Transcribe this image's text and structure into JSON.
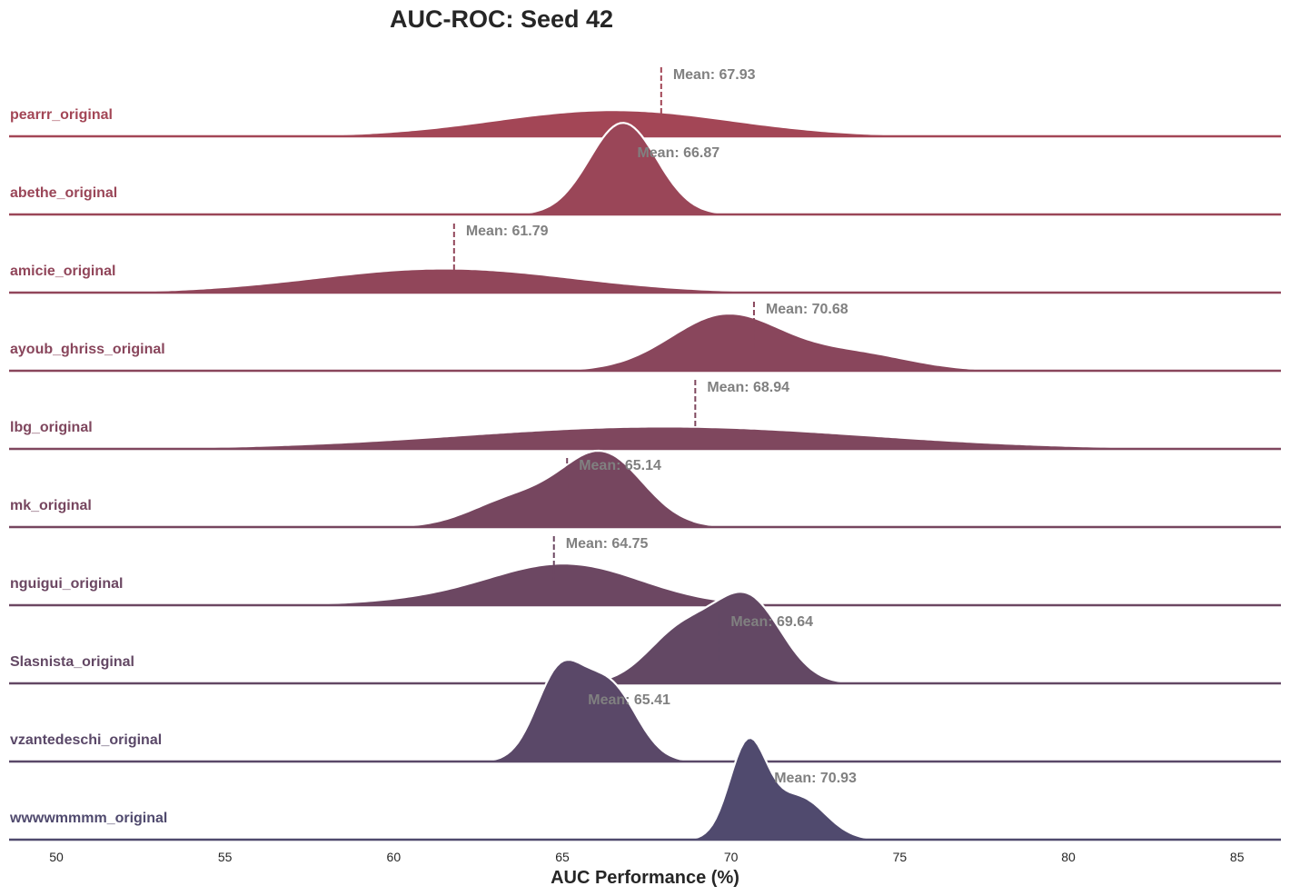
{
  "chart_data": {
    "type": "area",
    "subtype": "ridgeline-density",
    "title": "AUC-ROC: Seed 42",
    "xlabel": "AUC Performance (%)",
    "ylabel": "",
    "xlim": [
      48.6,
      86.3
    ],
    "xticks": [
      50,
      55,
      60,
      65,
      70,
      75,
      80,
      85
    ],
    "mean_label_prefix": "Mean: ",
    "grid": false,
    "series": [
      {
        "name": "pearrr_original",
        "mean": 67.93,
        "mean_label": "67.93",
        "color": "#a34656",
        "show_mean_line": true,
        "components": [
          [
            66.5,
            3.5,
            1.0
          ]
        ]
      },
      {
        "name": "abethe_original",
        "mean": 66.87,
        "mean_label": "66.87",
        "color": "#9a4658",
        "show_mean_line": false,
        "components": [
          [
            66.8,
            1.0,
            1.0
          ]
        ]
      },
      {
        "name": "amicie_original",
        "mean": 61.79,
        "mean_label": "61.79",
        "color": "#91465a",
        "show_mean_line": true,
        "components": [
          [
            61.5,
            3.8,
            1.0
          ]
        ]
      },
      {
        "name": "ayoub_ghriss_original",
        "mean": 70.68,
        "mean_label": "70.68",
        "color": "#89465c",
        "show_mean_line": true,
        "components": [
          [
            69.8,
            1.6,
            0.62
          ],
          [
            73.8,
            1.6,
            0.15
          ],
          [
            71.5,
            2.5,
            0.12
          ]
        ]
      },
      {
        "name": "lbg_original",
        "mean": 68.94,
        "mean_label": "68.94",
        "color": "#7f475e",
        "show_mean_line": true,
        "components": [
          [
            68.0,
            6.0,
            1.0
          ]
        ]
      },
      {
        "name": "mk_original",
        "mean": 65.14,
        "mean_label": "65.14",
        "color": "#76465f",
        "show_mean_line": true,
        "components": [
          [
            66.2,
            1.2,
            1.0
          ],
          [
            63.6,
            1.3,
            0.38
          ]
        ]
      },
      {
        "name": "nguigui_original",
        "mean": 64.75,
        "mean_label": "64.75",
        "color": "#6c4762",
        "show_mean_line": true,
        "components": [
          [
            65.2,
            2.2,
            1.0
          ],
          [
            62.0,
            2.5,
            0.15
          ]
        ]
      },
      {
        "name": "Slasnista_original",
        "mean": 69.64,
        "mean_label": "69.64",
        "color": "#634864",
        "show_mean_line": true,
        "components": [
          [
            70.5,
            1.0,
            1.0
          ],
          [
            68.5,
            1.0,
            0.6
          ]
        ]
      },
      {
        "name": "vzantedeschi_original",
        "mean": 65.41,
        "mean_label": "65.41",
        "color": "#5a4868",
        "show_mean_line": false,
        "components": [
          [
            64.9,
            0.7,
            1.0
          ],
          [
            66.4,
            0.8,
            0.88
          ]
        ]
      },
      {
        "name": "wwwwmmmm_original",
        "mean": 70.93,
        "mean_label": "70.93",
        "color": "#504a6e",
        "show_mean_line": false,
        "components": [
          [
            70.5,
            0.55,
            1.0
          ],
          [
            72.0,
            0.8,
            0.45
          ]
        ]
      }
    ]
  }
}
